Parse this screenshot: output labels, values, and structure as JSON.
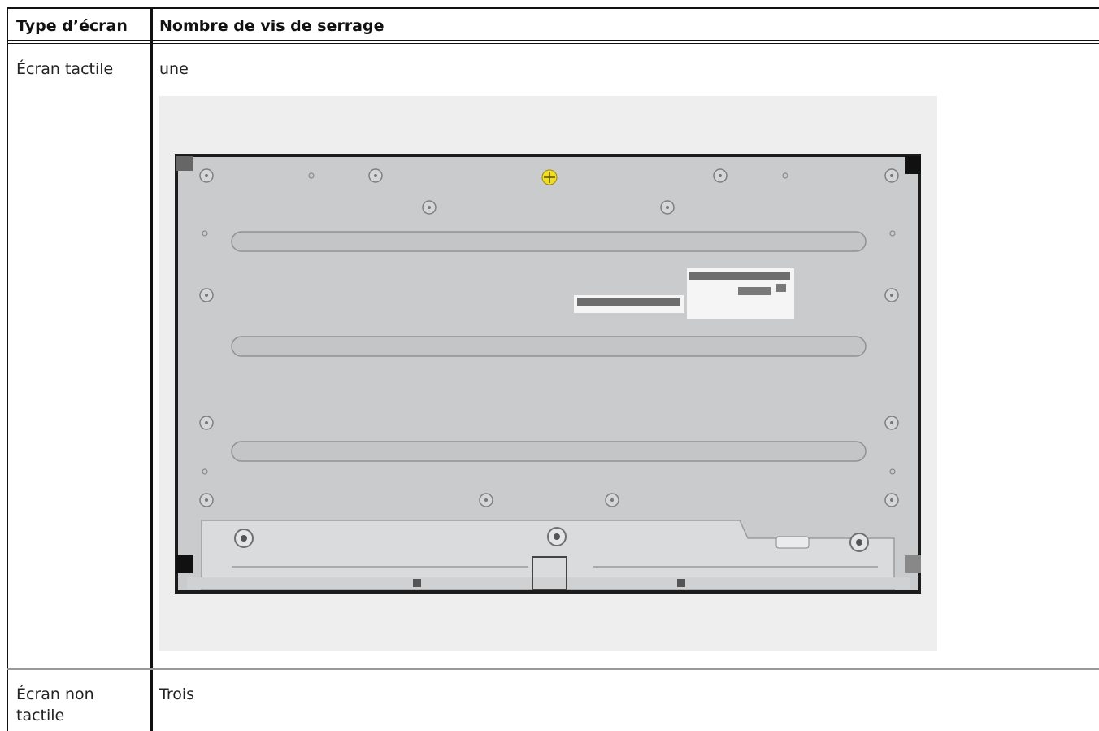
{
  "table": {
    "header": [
      "Type d’écran",
      "Nombre de vis de serrage"
    ],
    "rows": [
      [
        "Écran tactile",
        "une"
      ],
      [
        "Écran non tactile",
        "Trois"
      ]
    ]
  }
}
